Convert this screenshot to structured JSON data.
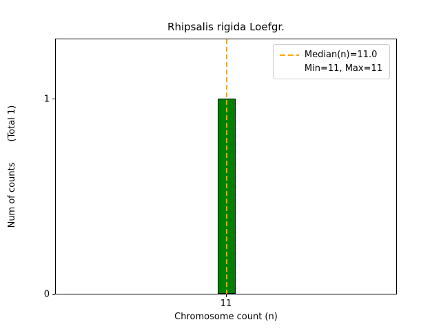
{
  "chart_data": {
    "type": "bar",
    "title": "Rhipsalis rigida Loefgr.",
    "xlabel": "Chromosome count (n)",
    "ylabel": "Num of counts",
    "ylabel_note": "(Total 1)",
    "categories": [
      11
    ],
    "values": [
      1
    ],
    "x_ticks": [
      "11"
    ],
    "y_ticks": [
      "0",
      "1"
    ],
    "x_tick_values": [
      11
    ],
    "y_tick_values": [
      0,
      1
    ],
    "xlim": [
      10.5,
      11.5
    ],
    "ylim": [
      0,
      1.31
    ],
    "grid": false,
    "bar_color": "#008000",
    "bar_edge_color": "#000000",
    "median_line": {
      "value": 11,
      "color": "#FFA500",
      "style": "dashed"
    },
    "legend": {
      "position": "top-right",
      "entries": [
        {
          "label": "Median(n)=11.0",
          "marker": "dashed-line",
          "color": "#FFA500"
        },
        {
          "label": "Min=11, Max=11",
          "marker": "none"
        }
      ]
    }
  }
}
